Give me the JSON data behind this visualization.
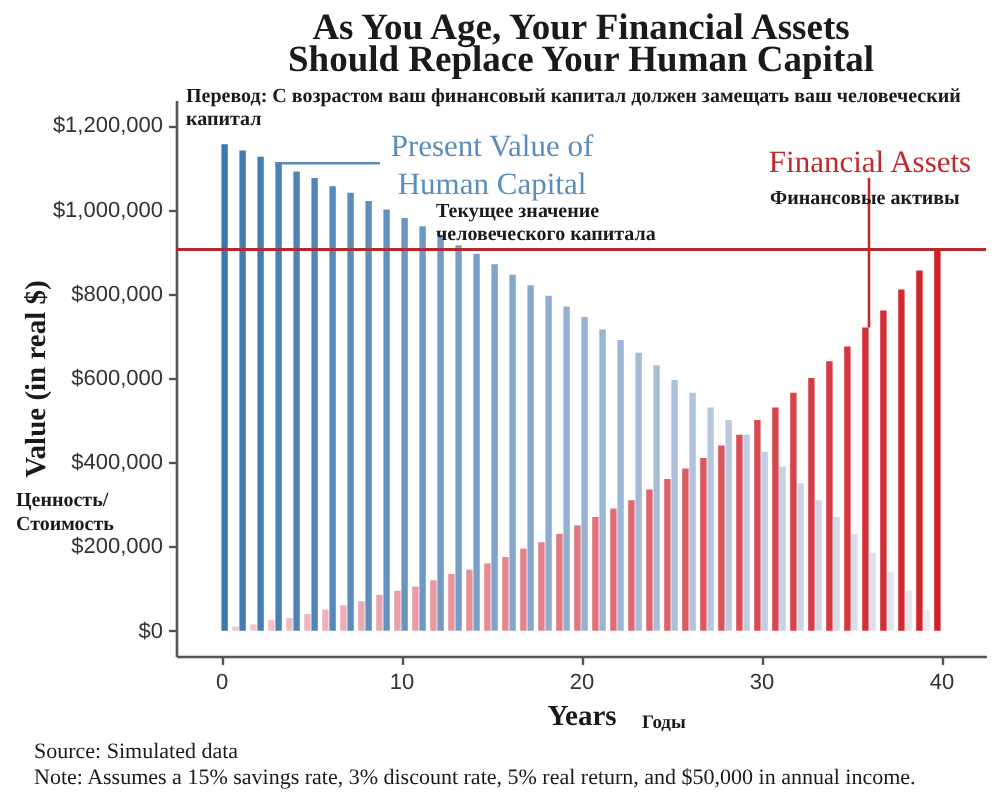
{
  "chart_data": {
    "type": "bar",
    "title": "As You Age, Your Financial Assets Should Replace Your Human Capital",
    "xlabel": "Years",
    "ylabel": "Value (in real $)",
    "x": [
      0,
      1,
      2,
      3,
      4,
      5,
      6,
      7,
      8,
      9,
      10,
      11,
      12,
      13,
      14,
      15,
      16,
      17,
      18,
      19,
      20,
      21,
      22,
      23,
      24,
      25,
      26,
      27,
      28,
      29,
      30,
      31,
      32,
      33,
      34,
      35,
      36,
      37,
      38,
      39,
      40
    ],
    "series": [
      {
        "name": "Present Value of Human Capital",
        "color": "#5b8cba",
        "colors": [
          "#3b78b0",
          "#407bb2",
          "#447eb3",
          "#4981b5",
          "#4d83b7",
          "#5286b9",
          "#5689ba",
          "#5b8cbc",
          "#5f8fbe",
          "#6492c0",
          "#6895c1",
          "#6d98c3",
          "#719ac5",
          "#769dc7",
          "#7ba0c8",
          "#7fa3ca",
          "#84a6cc",
          "#88a9ce",
          "#8daccf",
          "#91afd1",
          "#96b1d3",
          "#9ab4d5",
          "#9fb7d6",
          "#a3bad8",
          "#a8bdda",
          "#acc0dc",
          "#b1c3dd",
          "#b6c6df",
          "#bac8e1",
          "#bfcbe3",
          "#c3cee4",
          "#c8d1e6",
          "#ccd4e8",
          "#d1d7ea",
          "#d5daeb",
          "#dadded",
          "#dedfef",
          "#e3e2f1",
          "#e7e5f2",
          "#ece8f4",
          null
        ],
        "values": [
          1155000,
          1140000,
          1125000,
          1110000,
          1090000,
          1075000,
          1055000,
          1040000,
          1020000,
          1000000,
          980000,
          960000,
          940000,
          915000,
          895000,
          870000,
          845000,
          820000,
          795000,
          770000,
          745000,
          715000,
          690000,
          660000,
          630000,
          595000,
          565000,
          530000,
          500000,
          465000,
          425000,
          390000,
          350000,
          310000,
          270000,
          230000,
          185000,
          140000,
          95000,
          50000,
          null
        ]
      },
      {
        "name": "Financial Assets",
        "color": "#c0282d",
        "colors": [
          null,
          "#f0c8d2",
          "#efc4ce",
          "#eebfc9",
          "#eebbc5",
          "#edb7c1",
          "#ecb2bc",
          "#ebaeb8",
          "#eaaab3",
          "#e9a6af",
          "#e9a1ab",
          "#e89da6",
          "#e799a2",
          "#e6949e",
          "#e59099",
          "#e58c95",
          "#e48791",
          "#e3838c",
          "#e27f88",
          "#e17a84",
          "#e0767f",
          "#e0727b",
          "#df6e76",
          "#de6972",
          "#dd656e",
          "#dc6169",
          "#db5c65",
          "#db5861",
          "#da545c",
          "#d94f58",
          "#d84b54",
          "#d7474f",
          "#d7424b",
          "#d63e47",
          "#d53a42",
          "#d4363e",
          "#d33139",
          "#d22d35",
          "#d22931",
          "#d1242c",
          "#d02028"
        ],
        "values": [
          null,
          10000,
          15000,
          25000,
          30000,
          40000,
          50000,
          60000,
          70000,
          85000,
          95000,
          105000,
          120000,
          135000,
          145000,
          160000,
          175000,
          195000,
          210000,
          230000,
          250000,
          270000,
          290000,
          310000,
          335000,
          360000,
          385000,
          410000,
          440000,
          465000,
          500000,
          530000,
          565000,
          600000,
          640000,
          675000,
          720000,
          760000,
          810000,
          855000,
          905000
        ]
      }
    ],
    "xlim": [
      -2.5,
      42.5
    ],
    "xticks": [
      0,
      10,
      20,
      30,
      40
    ],
    "ylim": [
      -60000,
      1260000
    ],
    "yticks": [
      {
        "value": 0,
        "label": "$0"
      },
      {
        "value": 200000,
        "label": "$200,000"
      },
      {
        "value": 400000,
        "label": "$400,000"
      },
      {
        "value": 600000,
        "label": "$600,000"
      },
      {
        "value": 800000,
        "label": "$800,000"
      },
      {
        "value": 1000000,
        "label": "$1,000,000"
      },
      {
        "value": 1200000,
        "label": "$1,200,000"
      }
    ],
    "ref_lines": [
      {
        "axis": "y",
        "value": 905000,
        "color": "#b5282e"
      }
    ],
    "annotations": [
      "Перевод: С возрастом ваш финансовый капитал должен замещать ваш человеческий капитал",
      "Текущее значение человеческого капитала",
      {
        "text": "Финансовые активы",
        "x": 36,
        "y": 720000
      },
      "Ценность/ Стоимость",
      "Годы",
      "Source:  Simulated data",
      "Note:  Assumes a 15% savings rate, 3% discount rate, 5% real return, and $50,000 in annual income."
    ]
  }
}
